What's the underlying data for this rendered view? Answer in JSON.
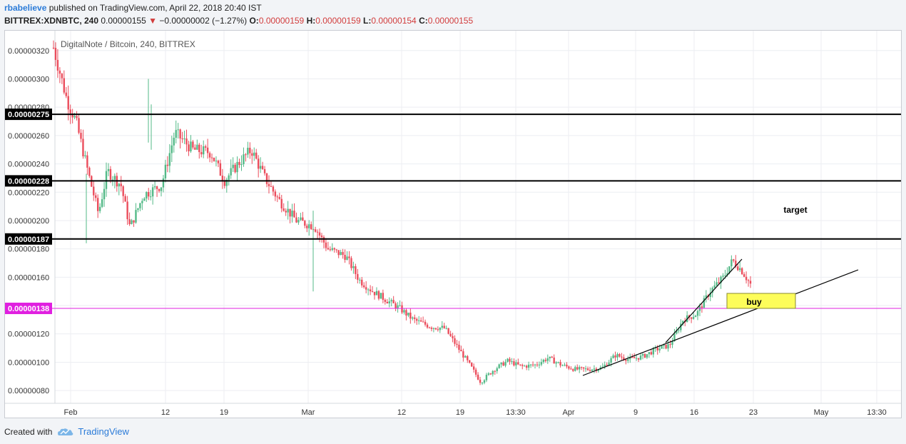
{
  "header": {
    "author": "rbabelieve",
    "published_text": "published on TradingView.com, April 22, 2018 20:40 IST",
    "symbol": "BITTREX:XDNBTC, 240",
    "last_price": "0.00000155",
    "change": "−0.00000002 (−1.27%)",
    "open_label": "O:",
    "open": "0.00000159",
    "high_label": "H:",
    "high": "0.00000159",
    "low_label": "L:",
    "low": "0.00000154",
    "close_label": "C:",
    "close": "0.00000155"
  },
  "footer": {
    "created_with": "Created with",
    "brand": "TradingView"
  },
  "colors": {
    "up": "#53b987",
    "down": "#eb4d5c",
    "magenta": "#e020e0",
    "buy_box": "#fdfd5a",
    "accent": "#2b7bd8"
  },
  "chart_data": {
    "type": "candlestick",
    "title": "DigitalNote / Bitcoin, 240, BITTREX",
    "y_ticks": [
      "0.00000080",
      "0.00000100",
      "0.00000120",
      "0.00000140",
      "0.00000160",
      "0.00000180",
      "0.00000200",
      "0.00000220",
      "0.00000240",
      "0.00000260",
      "0.00000280",
      "0.00000300",
      "0.00000320"
    ],
    "x_ticks": [
      "Feb",
      "12",
      "19",
      "Mar",
      "12",
      "19",
      "13:30",
      "Apr",
      "9",
      "16",
      "23",
      "May",
      "13:30"
    ],
    "ylim": [
      7.1e-07,
      3.34e-06
    ],
    "grid": true,
    "horizontal_levels": [
      {
        "value": 2.75e-06,
        "label": "0.00000275",
        "color": "#000000"
      },
      {
        "value": 2.28e-06,
        "label": "0.00000228",
        "color": "#000000"
      },
      {
        "value": 1.87e-06,
        "label": "0.00000187",
        "color": "#000000"
      },
      {
        "value": 1.38e-06,
        "label": "0.00000138",
        "color": "#e020e0"
      }
    ],
    "annotations": [
      {
        "text": "target"
      },
      {
        "text": "buy"
      }
    ],
    "price_path": [
      [
        0,
        3.22e-06
      ],
      [
        3,
        2.85e-06
      ],
      [
        5,
        2.7e-06
      ],
      [
        8,
        2.3e-06
      ],
      [
        10,
        2.05e-06
      ],
      [
        12,
        2.35e-06
      ],
      [
        15,
        2.25e-06
      ],
      [
        17,
        1.95e-06
      ],
      [
        20,
        2.18e-06
      ],
      [
        24,
        2.25e-06
      ],
      [
        27,
        2.62e-06
      ],
      [
        31,
        2.5e-06
      ],
      [
        35,
        2.48e-06
      ],
      [
        38,
        2.28e-06
      ],
      [
        41,
        2.4e-06
      ],
      [
        44,
        2.5e-06
      ],
      [
        47,
        2.3e-06
      ],
      [
        50,
        2.15e-06
      ],
      [
        54,
        2e-06
      ],
      [
        58,
        1.96e-06
      ],
      [
        61,
        1.8e-06
      ],
      [
        65,
        1.75e-06
      ],
      [
        68,
        1.58e-06
      ],
      [
        71,
        1.5e-06
      ],
      [
        74,
        1.44e-06
      ],
      [
        77,
        1.38e-06
      ],
      [
        80,
        1.3e-06
      ],
      [
        84,
        1.25e-06
      ],
      [
        87,
        1.24e-06
      ],
      [
        90,
        1.1e-06
      ],
      [
        93,
        9.6e-07
      ],
      [
        95,
        8.6e-07
      ],
      [
        98,
        9.5e-07
      ],
      [
        101,
        1.01e-06
      ],
      [
        104,
        9.7e-07
      ],
      [
        107,
        9.8e-07
      ],
      [
        110,
        1.03e-06
      ],
      [
        113,
        9.8e-07
      ],
      [
        116,
        9.5e-07
      ],
      [
        119,
        9.5e-07
      ],
      [
        122,
        9.6e-07
      ],
      [
        125,
        1.05e-06
      ],
      [
        128,
        1.02e-06
      ],
      [
        131,
        1.04e-06
      ],
      [
        134,
        1.09e-06
      ],
      [
        137,
        1.12e-06
      ],
      [
        140,
        1.3e-06
      ],
      [
        143,
        1.34e-06
      ],
      [
        146,
        1.5e-06
      ],
      [
        149,
        1.6e-06
      ],
      [
        151,
        1.72e-06
      ],
      [
        153,
        1.65e-06
      ],
      [
        155,
        1.55e-06
      ]
    ]
  }
}
